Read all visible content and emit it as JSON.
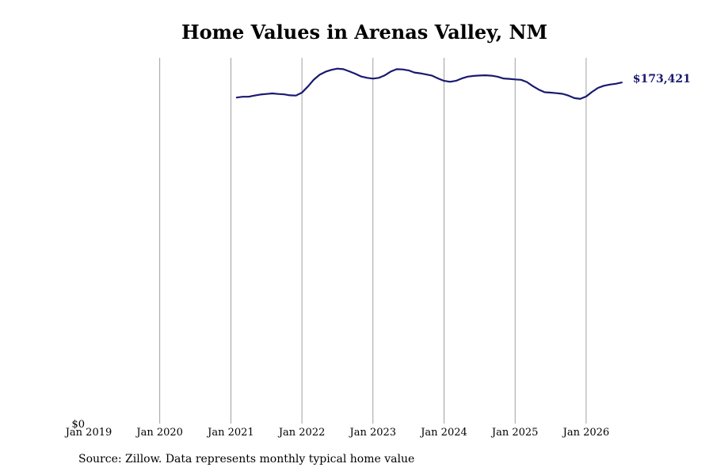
{
  "header": {
    "title": "Home Values in Arenas Valley, NM"
  },
  "footer": {
    "source": "Source: Zillow. Data represents monthly typical home value"
  },
  "colors": {
    "line": "#191970",
    "grid": "#888888"
  },
  "chart_data": {
    "type": "line",
    "title": "Home Values in Arenas Valley, NM",
    "xlabel": "",
    "ylabel": "",
    "x_ticks": [
      "Jan 2019",
      "Jan 2020",
      "Jan 2021",
      "Jan 2022",
      "Jan 2023",
      "Jan 2024",
      "Jan 2025",
      "Jan 2026"
    ],
    "y_ticks": [
      "$0"
    ],
    "ylim": [
      0,
      186000
    ],
    "xlim": [
      "2019-01",
      "2026-12"
    ],
    "grid": "vertical",
    "end_label": "$173,421",
    "series": [
      {
        "x": [
          "2021-02",
          "2021-03",
          "2021-04",
          "2021-05",
          "2021-06",
          "2021-07",
          "2021-08",
          "2021-09",
          "2021-10",
          "2021-11",
          "2021-12",
          "2022-01",
          "2022-02",
          "2022-03",
          "2022-04",
          "2022-05",
          "2022-06",
          "2022-07",
          "2022-08",
          "2022-09",
          "2022-10",
          "2022-11",
          "2022-12",
          "2023-01",
          "2023-02",
          "2023-03",
          "2023-04",
          "2023-05",
          "2023-06",
          "2023-07",
          "2023-08",
          "2023-09",
          "2023-10",
          "2023-11",
          "2023-12",
          "2024-01",
          "2024-02",
          "2024-03",
          "2024-04",
          "2024-05",
          "2024-06",
          "2024-07",
          "2024-08",
          "2024-09",
          "2024-10",
          "2024-11",
          "2024-12",
          "2025-01",
          "2025-02",
          "2025-03",
          "2025-04",
          "2025-05",
          "2025-06",
          "2025-07",
          "2025-08",
          "2025-09",
          "2025-10",
          "2025-11",
          "2025-12",
          "2026-01",
          "2026-02",
          "2026-03",
          "2026-04",
          "2026-05",
          "2026-06",
          "2026-07"
        ],
        "values": [
          165800,
          166200,
          166200,
          166800,
          167300,
          167600,
          167900,
          167600,
          167400,
          166900,
          166800,
          168300,
          171400,
          174900,
          177400,
          178900,
          179900,
          180500,
          180200,
          179100,
          177900,
          176500,
          175800,
          175400,
          175800,
          177100,
          179000,
          180200,
          180100,
          179600,
          178500,
          178100,
          177500,
          176900,
          175500,
          174300,
          173800,
          174300,
          175500,
          176400,
          176800,
          177000,
          177100,
          176900,
          176400,
          175500,
          175300,
          175000,
          174800,
          173700,
          171600,
          169800,
          168500,
          168300,
          168000,
          167700,
          166800,
          165500,
          165100,
          166300,
          168700,
          170700,
          171800,
          172400,
          172800,
          173421
        ]
      }
    ]
  }
}
